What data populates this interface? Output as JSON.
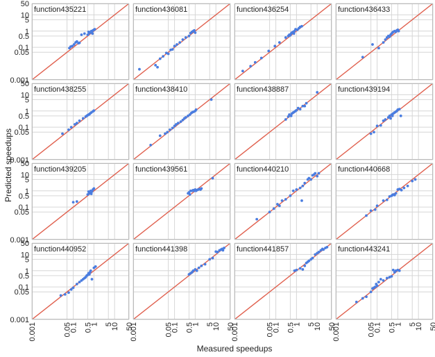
{
  "chart_data": {
    "type": "scatter",
    "xlabel": "Measured speedups",
    "ylabel": "Predicted speedups",
    "scale": "log",
    "xlim": [
      0.001,
      50
    ],
    "ylim": [
      0.001,
      50
    ],
    "x_ticks": [
      "0.001",
      "0.05",
      "0.1",
      "0.5",
      "1",
      "5",
      "10",
      "50"
    ],
    "y_ticks": [
      "0.001",
      "0.05",
      "0.1",
      "0.5",
      "1",
      "5",
      "10",
      "50"
    ],
    "tick_values": [
      0.001,
      0.05,
      0.1,
      0.5,
      1,
      5,
      10,
      50
    ],
    "grid": true,
    "reference_line": "y = x",
    "colors": {
      "points": "#4a7de0",
      "reference_line": "#e0604e",
      "grid": "#d6d6d6",
      "panel_border": "#bbbbbb"
    },
    "panels": [
      {
        "title": "function435221",
        "points": [
          [
            0.065,
            0.09
          ],
          [
            0.075,
            0.11
          ],
          [
            0.09,
            0.12
          ],
          [
            0.11,
            0.15
          ],
          [
            0.13,
            0.2
          ],
          [
            0.15,
            0.23
          ],
          [
            0.18,
            0.18
          ],
          [
            0.2,
            0.19
          ],
          [
            0.25,
            0.6
          ],
          [
            0.35,
            0.7
          ],
          [
            0.5,
            0.6
          ],
          [
            0.55,
            0.9
          ],
          [
            0.6,
            0.75
          ],
          [
            0.65,
            0.8
          ],
          [
            0.7,
            0.9
          ],
          [
            0.75,
            1.0
          ],
          [
            0.8,
            0.85
          ],
          [
            0.85,
            0.7
          ],
          [
            0.9,
            1.1
          ],
          [
            1.0,
            1.2
          ],
          [
            1.1,
            1.3
          ]
        ]
      },
      {
        "title": "function436081",
        "points": [
          [
            0.002,
            0.0045
          ],
          [
            0.012,
            0.008
          ],
          [
            0.015,
            0.006
          ],
          [
            0.02,
            0.02
          ],
          [
            0.028,
            0.028
          ],
          [
            0.04,
            0.045
          ],
          [
            0.05,
            0.04
          ],
          [
            0.065,
            0.07
          ],
          [
            0.08,
            0.075
          ],
          [
            0.1,
            0.12
          ],
          [
            0.13,
            0.15
          ],
          [
            0.18,
            0.2
          ],
          [
            0.25,
            0.3
          ],
          [
            0.35,
            0.4
          ],
          [
            0.5,
            0.5
          ],
          [
            0.6,
            0.75
          ],
          [
            0.7,
            0.9
          ],
          [
            0.8,
            1.0
          ],
          [
            0.9,
            1.1
          ],
          [
            1.0,
            0.8
          ]
        ]
      },
      {
        "title": "function436254",
        "points": [
          [
            0.0025,
            0.0035
          ],
          [
            0.006,
            0.007
          ],
          [
            0.01,
            0.012
          ],
          [
            0.02,
            0.022
          ],
          [
            0.045,
            0.06
          ],
          [
            0.09,
            0.12
          ],
          [
            0.15,
            0.2
          ],
          [
            0.3,
            0.4
          ],
          [
            0.4,
            0.5
          ],
          [
            0.45,
            0.6
          ],
          [
            0.5,
            0.55
          ],
          [
            0.55,
            0.7
          ],
          [
            0.6,
            0.8
          ],
          [
            0.7,
            0.9
          ],
          [
            0.75,
            0.7
          ],
          [
            0.8,
            1.0
          ],
          [
            0.9,
            1.3
          ],
          [
            1.1,
            1.2
          ],
          [
            1.3,
            1.5
          ],
          [
            1.5,
            1.8
          ],
          [
            1.8,
            2.0
          ]
        ]
      },
      {
        "title": "function436433",
        "points": [
          [
            0.02,
            0.025
          ],
          [
            0.06,
            0.15
          ],
          [
            0.12,
            0.09
          ],
          [
            0.2,
            0.2
          ],
          [
            0.25,
            0.3
          ],
          [
            0.3,
            0.4
          ],
          [
            0.35,
            0.5
          ],
          [
            0.4,
            0.45
          ],
          [
            0.45,
            0.6
          ],
          [
            0.5,
            0.7
          ],
          [
            0.55,
            0.8
          ],
          [
            0.6,
            0.9
          ],
          [
            0.7,
            1.0
          ],
          [
            0.8,
            0.9
          ],
          [
            0.9,
            1.1
          ],
          [
            1.0,
            1.2
          ],
          [
            1.1,
            1.0
          ]
        ]
      },
      {
        "title": "function438255",
        "points": [
          [
            0.03,
            0.04
          ],
          [
            0.06,
            0.07
          ],
          [
            0.08,
            0.1
          ],
          [
            0.12,
            0.15
          ],
          [
            0.15,
            0.18
          ],
          [
            0.2,
            0.25
          ],
          [
            0.3,
            0.35
          ],
          [
            0.4,
            0.45
          ],
          [
            0.45,
            0.5
          ],
          [
            0.5,
            0.55
          ],
          [
            0.55,
            0.6
          ],
          [
            0.6,
            0.62
          ],
          [
            0.65,
            0.7
          ],
          [
            0.75,
            0.8
          ],
          [
            0.9,
            0.95
          ],
          [
            1.0,
            1.05
          ]
        ]
      },
      {
        "title": "function438410",
        "points": [
          [
            0.007,
            0.008
          ],
          [
            0.02,
            0.03
          ],
          [
            0.035,
            0.04
          ],
          [
            0.045,
            0.05
          ],
          [
            0.06,
            0.07
          ],
          [
            0.08,
            0.09
          ],
          [
            0.1,
            0.12
          ],
          [
            0.12,
            0.15
          ],
          [
            0.15,
            0.18
          ],
          [
            0.2,
            0.22
          ],
          [
            0.25,
            0.28
          ],
          [
            0.3,
            0.35
          ],
          [
            0.35,
            0.4
          ],
          [
            0.45,
            0.5
          ],
          [
            0.55,
            0.6
          ],
          [
            0.65,
            0.75
          ],
          [
            0.75,
            0.85
          ],
          [
            0.85,
            0.9
          ],
          [
            1.0,
            1.0
          ],
          [
            1.1,
            1.2
          ],
          [
            6.0,
            5.0
          ]
        ]
      },
      {
        "title": "function438887",
        "points": [
          [
            0.3,
            0.3
          ],
          [
            0.4,
            0.45
          ],
          [
            0.45,
            0.6
          ],
          [
            0.55,
            0.5
          ],
          [
            0.6,
            0.7
          ],
          [
            0.7,
            0.8
          ],
          [
            0.8,
            0.9
          ],
          [
            0.9,
            1.0
          ],
          [
            1.0,
            1.1
          ],
          [
            1.2,
            1.5
          ],
          [
            1.5,
            1.3
          ],
          [
            2.0,
            2.0
          ],
          [
            2.5,
            2.0
          ],
          [
            3.0,
            3.0
          ],
          [
            10.0,
            14.0
          ]
        ]
      },
      {
        "title": "function439194",
        "points": [
          [
            0.05,
            0.04
          ],
          [
            0.07,
            0.05
          ],
          [
            0.1,
            0.12
          ],
          [
            0.15,
            0.13
          ],
          [
            0.2,
            0.25
          ],
          [
            0.25,
            0.3
          ],
          [
            0.35,
            0.4
          ],
          [
            0.4,
            0.5
          ],
          [
            0.45,
            0.35
          ],
          [
            0.5,
            0.6
          ],
          [
            0.55,
            0.5
          ],
          [
            0.6,
            0.7
          ],
          [
            0.7,
            0.8
          ],
          [
            0.8,
            0.9
          ],
          [
            0.9,
            1.0
          ],
          [
            1.0,
            1.2
          ],
          [
            1.2,
            1.3
          ],
          [
            1.4,
            0.5
          ]
        ]
      },
      {
        "title": "function439205",
        "points": [
          [
            0.1,
            0.2
          ],
          [
            0.15,
            0.22
          ],
          [
            0.5,
            0.6
          ],
          [
            0.55,
            0.9
          ],
          [
            0.6,
            0.7
          ],
          [
            0.65,
            0.85
          ],
          [
            0.7,
            1.0
          ],
          [
            0.75,
            0.65
          ],
          [
            0.8,
            0.9
          ],
          [
            0.9,
            1.2
          ],
          [
            1.0,
            1.4
          ]
        ]
      },
      {
        "title": "function439561",
        "points": [
          [
            0.45,
            0.7
          ],
          [
            0.5,
            0.8
          ],
          [
            0.55,
            0.6
          ],
          [
            0.6,
            1.0
          ],
          [
            0.7,
            1.0
          ],
          [
            0.8,
            1.1
          ],
          [
            0.9,
            1.0
          ],
          [
            1.0,
            1.2
          ],
          [
            1.1,
            1.0
          ],
          [
            1.2,
            1.1
          ],
          [
            1.4,
            1.2
          ],
          [
            1.6,
            1.3
          ],
          [
            1.8,
            1.2
          ],
          [
            2.0,
            1.4
          ],
          [
            7.0,
            6.0
          ]
        ]
      },
      {
        "title": "function440210",
        "points": [
          [
            0.012,
            0.018
          ],
          [
            0.05,
            0.05
          ],
          [
            0.08,
            0.08
          ],
          [
            0.12,
            0.15
          ],
          [
            0.15,
            0.12
          ],
          [
            0.2,
            0.25
          ],
          [
            0.3,
            0.3
          ],
          [
            0.5,
            0.5
          ],
          [
            0.7,
            1.0
          ],
          [
            1.0,
            1.2
          ],
          [
            1.5,
            1.5
          ],
          [
            1.8,
            0.25
          ],
          [
            2.0,
            2.0
          ],
          [
            2.5,
            3.0
          ],
          [
            3.5,
            5.0
          ],
          [
            4.0,
            6.0
          ],
          [
            5.0,
            5.0
          ],
          [
            6.0,
            9.0
          ],
          [
            7.0,
            10.0
          ],
          [
            8.0,
            12.0
          ],
          [
            10.0,
            8.0
          ],
          [
            12.0,
            12.0
          ]
        ]
      },
      {
        "title": "function440668",
        "points": [
          [
            0.03,
            0.03
          ],
          [
            0.05,
            0.06
          ],
          [
            0.08,
            0.07
          ],
          [
            0.1,
            0.12
          ],
          [
            0.2,
            0.25
          ],
          [
            0.3,
            0.28
          ],
          [
            0.4,
            0.45
          ],
          [
            0.5,
            0.5
          ],
          [
            0.55,
            0.55
          ],
          [
            0.6,
            0.6
          ],
          [
            0.7,
            0.55
          ],
          [
            0.8,
            0.7
          ],
          [
            1.0,
            1.2
          ],
          [
            1.2,
            1.3
          ],
          [
            1.5,
            1.1
          ],
          [
            2.0,
            1.5
          ],
          [
            3.0,
            2.0
          ],
          [
            5.0,
            4.0
          ],
          [
            7.0,
            5.0
          ]
        ]
      },
      {
        "title": "function440952",
        "points": [
          [
            0.025,
            0.03
          ],
          [
            0.04,
            0.035
          ],
          [
            0.06,
            0.045
          ],
          [
            0.08,
            0.07
          ],
          [
            0.1,
            0.09
          ],
          [
            0.15,
            0.15
          ],
          [
            0.2,
            0.2
          ],
          [
            0.25,
            0.25
          ],
          [
            0.3,
            0.3
          ],
          [
            0.35,
            0.35
          ],
          [
            0.4,
            0.4
          ],
          [
            0.45,
            0.5
          ],
          [
            0.5,
            0.55
          ],
          [
            0.55,
            0.7
          ],
          [
            0.6,
            0.6
          ],
          [
            0.65,
            0.8
          ],
          [
            0.7,
            1.0
          ],
          [
            0.8,
            0.3
          ],
          [
            1.0,
            1.5
          ],
          [
            1.2,
            1.8
          ]
        ]
      },
      {
        "title": "function441398",
        "points": [
          [
            0.5,
            0.6
          ],
          [
            0.6,
            0.7
          ],
          [
            0.7,
            0.8
          ],
          [
            0.8,
            1.0
          ],
          [
            1.0,
            1.2
          ],
          [
            1.2,
            1.0
          ],
          [
            1.5,
            1.5
          ],
          [
            2.0,
            2.0
          ],
          [
            3.0,
            2.5
          ],
          [
            5.0,
            5.0
          ],
          [
            7.0,
            6.0
          ],
          [
            10.0,
            15.0
          ],
          [
            12.0,
            14.0
          ],
          [
            15.0,
            18.0
          ],
          [
            18.0,
            20.0
          ],
          [
            20.0,
            22.0
          ],
          [
            22.0,
            18.0
          ],
          [
            25.0,
            25.0
          ]
        ]
      },
      {
        "title": "function441857",
        "points": [
          [
            0.8,
            1.0
          ],
          [
            1.0,
            1.1
          ],
          [
            1.5,
            1.4
          ],
          [
            2.0,
            1.2
          ],
          [
            2.5,
            2.0
          ],
          [
            3.0,
            3.0
          ],
          [
            3.5,
            3.5
          ],
          [
            4.0,
            4.0
          ],
          [
            5.0,
            5.0
          ],
          [
            6.0,
            6.0
          ],
          [
            8.0,
            10.0
          ],
          [
            10.0,
            12.0
          ],
          [
            12.0,
            14.0
          ],
          [
            15.0,
            18.0
          ],
          [
            18.0,
            22.0
          ],
          [
            20.0,
            20.0
          ],
          [
            25.0,
            25.0
          ],
          [
            30.0,
            28.0
          ]
        ]
      },
      {
        "title": "function443241",
        "points": [
          [
            0.01,
            0.012
          ],
          [
            0.02,
            0.02
          ],
          [
            0.03,
            0.025
          ],
          [
            0.05,
            0.05
          ],
          [
            0.06,
            0.08
          ],
          [
            0.07,
            0.09
          ],
          [
            0.08,
            0.1
          ],
          [
            0.09,
            0.15
          ],
          [
            0.1,
            0.12
          ],
          [
            0.12,
            0.2
          ],
          [
            0.15,
            0.3
          ],
          [
            0.2,
            0.25
          ],
          [
            0.3,
            0.35
          ],
          [
            0.4,
            0.4
          ],
          [
            0.5,
            0.45
          ],
          [
            0.6,
            1.1
          ],
          [
            0.7,
            0.8
          ],
          [
            0.8,
            1.0
          ],
          [
            1.0,
            1.1
          ],
          [
            1.2,
            1.0
          ]
        ]
      }
    ]
  }
}
